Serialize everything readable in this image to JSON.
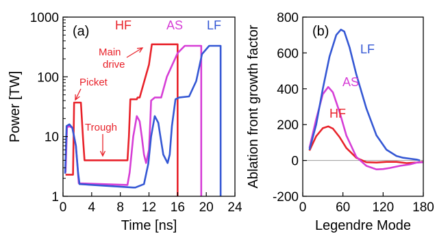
{
  "colors": {
    "HF": "#e8222a",
    "AS": "#d63ed6",
    "LF": "#3457d4",
    "axis": "#000000",
    "zero": "#999999"
  },
  "chart_data": [
    {
      "panel_label": "(a)",
      "type": "line",
      "xlabel": "Time [ns]",
      "ylabel": "Power [TW]",
      "x_ticks": [
        "0",
        "4",
        "8",
        "12",
        "16",
        "20",
        "24"
      ],
      "y_ticks": [
        "1",
        "10",
        "100",
        "1000"
      ],
      "xlim": [
        0,
        24
      ],
      "ylim": [
        1,
        1000
      ],
      "y_scale": "log",
      "series_labels": {
        "HF": "HF",
        "AS": "AS",
        "LF": "LF"
      },
      "annotations": {
        "main_drive_1": "Main",
        "main_drive_2": "drive",
        "picket": "Picket",
        "trough": "Trough"
      },
      "series": [
        {
          "name": "HF",
          "key": "HF",
          "x": [
            0.35,
            0.5,
            0.6,
            1.4,
            1.55,
            2.5,
            2.8,
            3.0,
            9.0,
            9.2,
            9.4,
            10.3,
            10.4,
            10.5,
            10.7,
            12.0,
            12.4,
            16.0,
            16.0
          ],
          "y": [
            2.3,
            2.3,
            2.3,
            2.3,
            37,
            37,
            9,
            4.0,
            4.0,
            10,
            42,
            42,
            45,
            45,
            45,
            160,
            350,
            350,
            1
          ]
        },
        {
          "name": "AS",
          "key": "AS",
          "x": [
            0.35,
            0.55,
            0.8,
            1.3,
            1.8,
            2.2,
            9.0,
            9.3,
            9.8,
            10.3,
            10.7,
            11.0,
            11.3,
            11.6,
            12.0,
            12.2,
            12.3,
            12.8,
            13.4,
            13.7,
            14.5,
            16.0,
            17.0,
            18.0,
            19.3,
            19.3
          ],
          "y": [
            2.5,
            14,
            15,
            14,
            7,
            1.65,
            1.55,
            2.5,
            10,
            22,
            18,
            10,
            5,
            3.6,
            6,
            20,
            40,
            45,
            45,
            45,
            100,
            250,
            330,
            330,
            330,
            1
          ]
        },
        {
          "name": "LF",
          "key": "LF",
          "x": [
            0.3,
            0.5,
            0.9,
            1.3,
            1.8,
            2.1,
            2.3,
            9.8,
            10.1,
            11.3,
            11.9,
            12.3,
            12.8,
            13.3,
            13.6,
            14.0,
            14.6,
            14.9,
            15.2,
            15.7,
            16.2,
            17.6,
            18.6,
            19.4,
            20.4,
            22.0,
            22.0
          ],
          "y": [
            2.4,
            15,
            16,
            14,
            7,
            2.5,
            1.6,
            1.4,
            1.4,
            1.6,
            3.5,
            10,
            22,
            17,
            10,
            5,
            3.6,
            5,
            15,
            42,
            45,
            47,
            85,
            240,
            330,
            330,
            1
          ]
        }
      ]
    },
    {
      "panel_label": "(b)",
      "type": "line",
      "xlabel": "Legendre Mode",
      "ylabel": "Ablation front growth factor",
      "x_ticks": [
        "0",
        "60",
        "120",
        "180"
      ],
      "y_ticks": [
        "-200",
        "0",
        "200",
        "400",
        "600",
        "800"
      ],
      "xlim": [
        0,
        180
      ],
      "ylim": [
        -200,
        800
      ],
      "y_scale": "linear",
      "series_labels": {
        "HF": "HF",
        "AS": "AS",
        "LF": "LF"
      },
      "series": [
        {
          "name": "HF",
          "key": "HF",
          "x": [
            10,
            20,
            30,
            38,
            45,
            55,
            65,
            80,
            95,
            110,
            125,
            140,
            155,
            170,
            180
          ],
          "y": [
            55,
            135,
            180,
            190,
            178,
            130,
            70,
            15,
            -10,
            -12,
            -8,
            -8,
            -15,
            -12,
            -8
          ]
        },
        {
          "name": "AS",
          "key": "AS",
          "x": [
            10,
            20,
            30,
            38,
            45,
            55,
            65,
            80,
            95,
            110,
            120,
            130,
            145,
            160,
            170,
            180
          ],
          "y": [
            70,
            230,
            370,
            410,
            380,
            270,
            140,
            20,
            -30,
            -50,
            -48,
            -42,
            -30,
            -22,
            -12,
            -10
          ]
        },
        {
          "name": "LF",
          "key": "LF",
          "x": [
            10,
            20,
            30,
            40,
            50,
            57,
            62,
            70,
            80,
            95,
            110,
            125,
            140,
            150,
            160,
            170,
            175
          ],
          "y": [
            60,
            200,
            400,
            580,
            700,
            730,
            720,
            630,
            480,
            290,
            140,
            60,
            25,
            15,
            10,
            5,
            0
          ]
        }
      ]
    }
  ]
}
